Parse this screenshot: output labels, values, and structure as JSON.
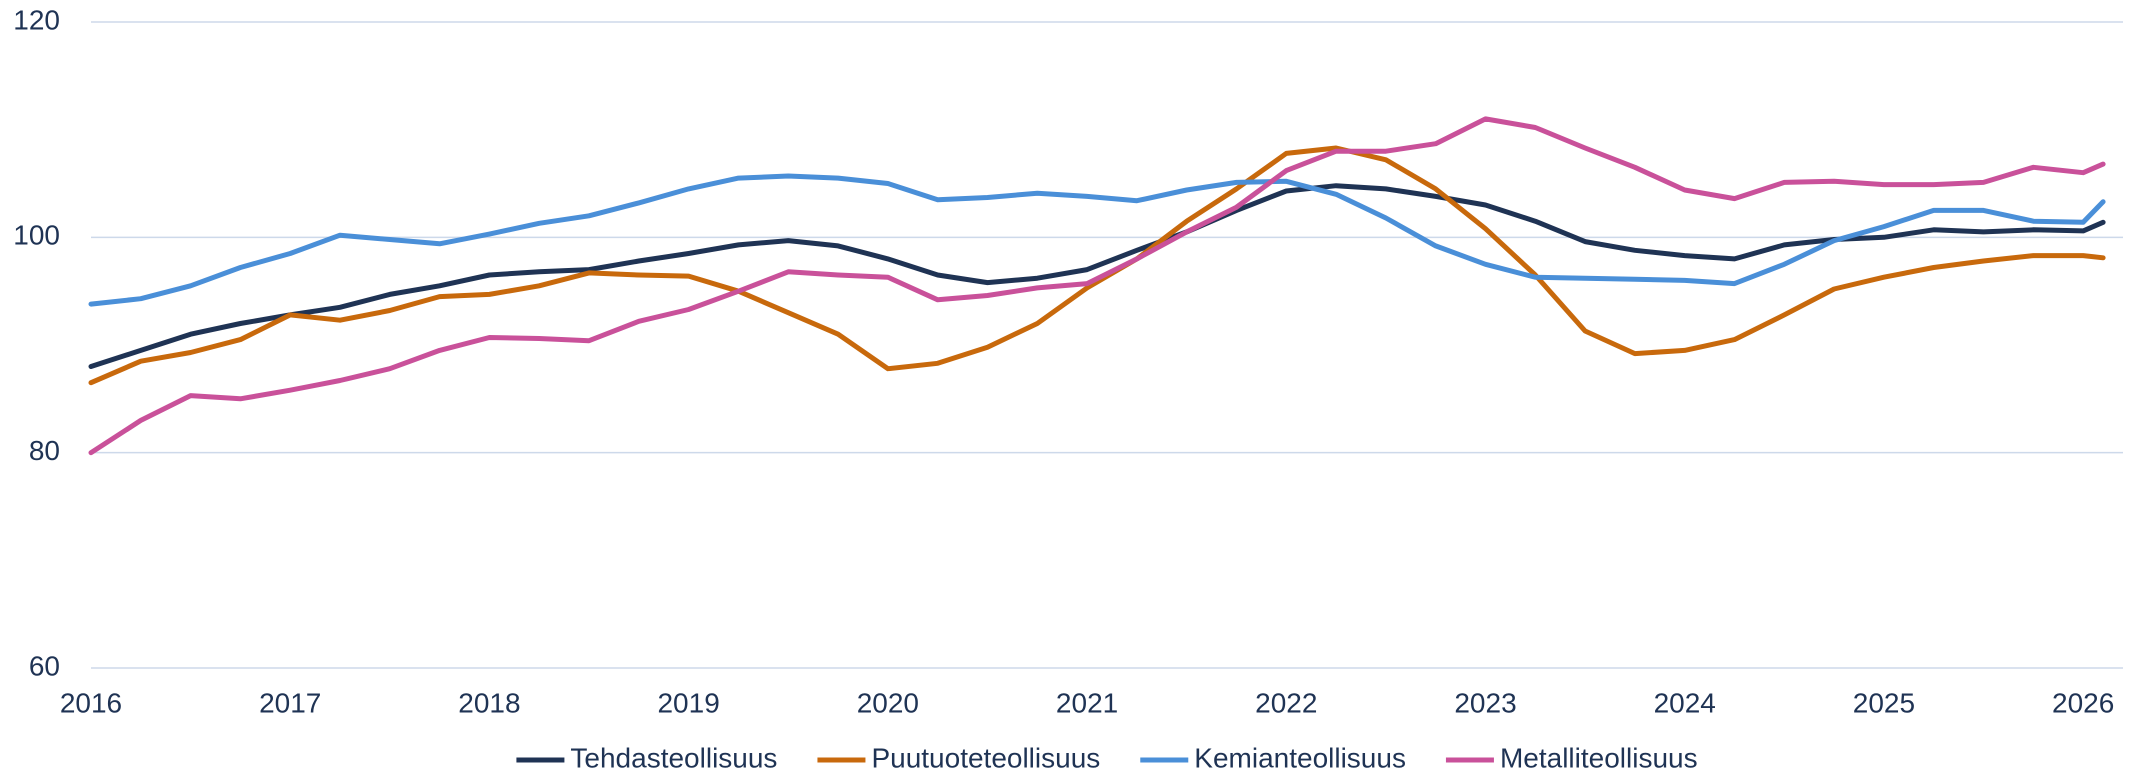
{
  "chart_data": {
    "type": "line",
    "x": [
      2016,
      2016.25,
      2016.5,
      2016.75,
      2017,
      2017.25,
      2017.5,
      2017.75,
      2018,
      2018.25,
      2018.5,
      2018.75,
      2019,
      2019.25,
      2019.5,
      2019.75,
      2020,
      2020.25,
      2020.5,
      2020.75,
      2021,
      2021.25,
      2021.5,
      2021.75,
      2022,
      2022.25,
      2022.5,
      2022.75,
      2023,
      2023.25,
      2023.5,
      2023.75,
      2024,
      2024.25,
      2024.5,
      2024.75,
      2025,
      2025.25,
      2025.5,
      2025.75,
      2026,
      2026.1
    ],
    "series": [
      {
        "name": "Tehdasteollisuus",
        "color": "#1f3354",
        "values": [
          88,
          89.5,
          91,
          92,
          92.8,
          93.5,
          94.7,
          95.5,
          96.5,
          96.8,
          97,
          97.8,
          98.5,
          99.3,
          99.7,
          99.2,
          98,
          96.5,
          95.8,
          96.2,
          97,
          98.8,
          100.5,
          102.5,
          104.3,
          104.8,
          104.5,
          103.8,
          103,
          101.5,
          99.6,
          98.8,
          98.3,
          98,
          99.3,
          99.8,
          100,
          100.7,
          100.5,
          100.7,
          100.6,
          101.4
        ]
      },
      {
        "name": "Puutuoteteollisuus",
        "color": "#c8690c",
        "values": [
          86.5,
          88.5,
          89.3,
          90.5,
          92.8,
          92.3,
          93.2,
          94.5,
          94.7,
          95.5,
          96.7,
          96.5,
          96.4,
          95,
          93,
          91,
          87.8,
          88.3,
          89.8,
          92,
          95.3,
          98,
          101.5,
          104.5,
          107.8,
          108.3,
          107.2,
          104.5,
          100.8,
          96.5,
          91.3,
          89.2,
          89.5,
          90.5,
          92.8,
          95.2,
          96.3,
          97.2,
          97.8,
          98.3,
          98.3,
          98.1
        ]
      },
      {
        "name": "Kemianteollisuus",
        "color": "#4a8fd8",
        "values": [
          93.8,
          94.3,
          95.5,
          97.2,
          98.5,
          100.2,
          99.8,
          99.4,
          100.3,
          101.3,
          102,
          103.2,
          104.5,
          105.5,
          105.7,
          105.5,
          105,
          103.5,
          103.7,
          104.1,
          103.8,
          103.4,
          104.4,
          105.1,
          105.2,
          104,
          101.8,
          99.2,
          97.5,
          96.3,
          96.2,
          96.1,
          96,
          95.7,
          97.5,
          99.7,
          101,
          102.5,
          102.5,
          101.5,
          101.4,
          103.3
        ]
      },
      {
        "name": "Metalliteollisuus",
        "color": "#c9519a",
        "values": [
          80,
          83,
          85.3,
          85,
          85.8,
          86.7,
          87.8,
          89.5,
          90.7,
          90.6,
          90.4,
          92.2,
          93.3,
          95,
          96.8,
          96.5,
          96.3,
          94.2,
          94.6,
          95.3,
          95.7,
          98,
          100.5,
          102.8,
          106.2,
          108,
          108,
          108.7,
          111,
          110.2,
          108.3,
          106.5,
          104.4,
          103.6,
          105.1,
          105.2,
          104.9,
          104.9,
          105.1,
          106.5,
          106,
          106.8
        ]
      }
    ],
    "xlim": [
      2016,
      2026.2
    ],
    "xticks": [
      2016,
      2017,
      2018,
      2019,
      2020,
      2021,
      2022,
      2023,
      2024,
      2025,
      2026
    ],
    "ylim": [
      60,
      120
    ],
    "yticks": [
      60,
      80,
      100,
      120
    ],
    "grid": true,
    "legend": "bottom"
  }
}
